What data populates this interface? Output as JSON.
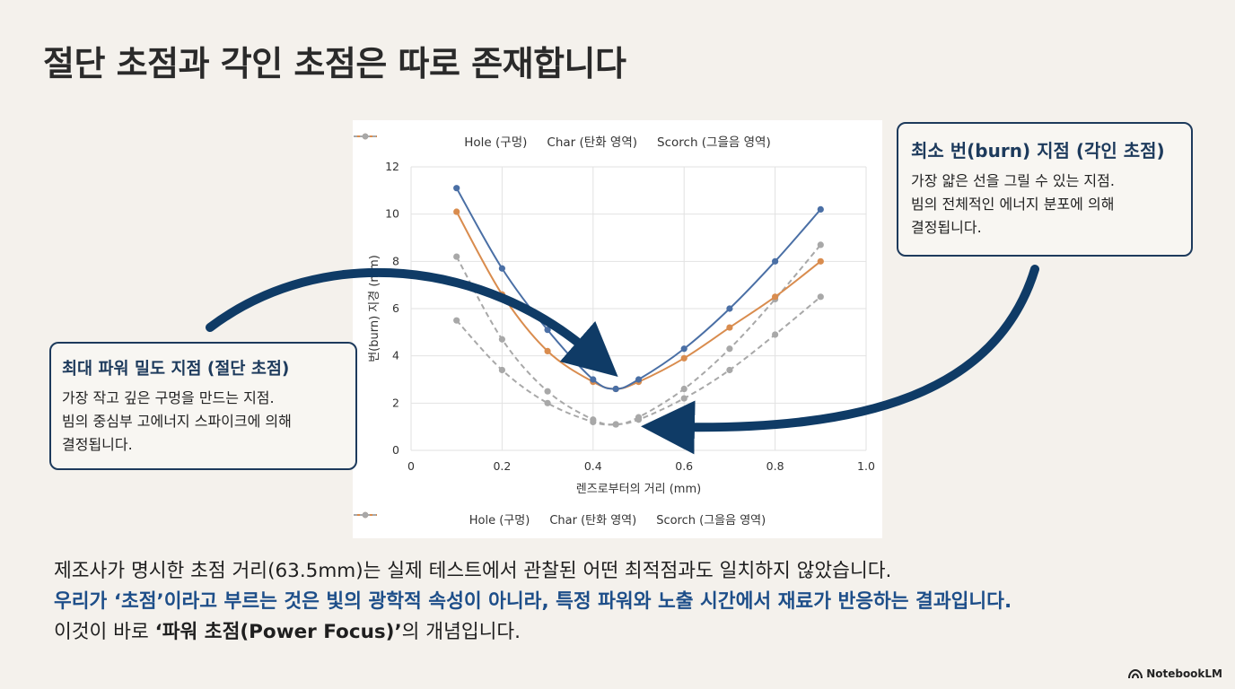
{
  "slide": {
    "title": "절단 초점과 각인 초점은 따로 존재합니다",
    "brand": "NotebookLM",
    "brand_icon": "notebooklm-logo-icon"
  },
  "callouts": {
    "left": {
      "title": "최대 파워 밀도 지점 (절단 초점)",
      "lines": [
        "가장 작고 깊은 구멍을 만드는 지점.",
        "빔의 중심부 고에너지 스파이크에 의해",
        "결정됩니다."
      ]
    },
    "right": {
      "title": "최소 번(burn) 지점 (각인 초점)",
      "lines": [
        "가장 얇은 선을 그릴 수 있는 지점.",
        "빔의 전체적인 에너지 분포에 의해",
        "결정됩니다."
      ]
    },
    "arrow_color": "#0f3b66"
  },
  "bottom": {
    "line1": "제조사가 명시한 초점 거리(63.5mm)는 실제 테스트에서 관찰된 어떤 최적점과도 일치하지 않았습니다.",
    "line2": "우리가 ‘초점’이라고 부르는 것은 빛의 광학적 속성이 아니라, 특정 파워와 노출 시간에서 재료가 반응하는 결과입니다.",
    "line3_prefix": "이것이 바로 ",
    "line3_bold": "‘파워 초점(Power Focus)’",
    "line3_suffix": "의 개념입니다."
  },
  "chart_data": {
    "type": "line",
    "title": "",
    "xlabel": "렌즈로부터의 거리 (mm)",
    "ylabel": "번(burn) 지경 (mm)",
    "xlim": [
      0,
      1.0
    ],
    "ylim": [
      0,
      12
    ],
    "xticks": [
      "0",
      "0.2",
      "0.4",
      "0.6",
      "0.8",
      "1.0"
    ],
    "yticks": [
      "0",
      "2",
      "4",
      "6",
      "8",
      "10",
      "12"
    ],
    "grid": true,
    "legend_position": "top and bottom",
    "x": [
      0.1,
      0.2,
      0.3,
      0.4,
      0.45,
      0.5,
      0.6,
      0.7,
      0.8,
      0.9
    ],
    "series": [
      {
        "name": "Hole (구멍)",
        "color": "#4a6fa5",
        "dashed": false,
        "values": [
          11.1,
          7.7,
          5.1,
          3.0,
          2.6,
          3.0,
          4.3,
          6.0,
          8.0,
          10.2
        ]
      },
      {
        "name": "Char (탄화 영역)",
        "color": "#d98c4e",
        "dashed": false,
        "values": [
          10.1,
          6.6,
          4.2,
          2.9,
          2.6,
          2.9,
          3.9,
          5.2,
          6.5,
          8.0
        ]
      },
      {
        "name": "Scorch (그을음 영역)",
        "color": "#a8a8a8",
        "dashed": true,
        "values": [
          8.2,
          4.7,
          2.5,
          1.3,
          1.1,
          1.4,
          2.6,
          4.3,
          6.4,
          8.7
        ]
      },
      {
        "name": "Scorch (그을음 영역)",
        "color": "#a8a8a8",
        "dashed": true,
        "values": [
          5.5,
          3.4,
          2.0,
          1.2,
          1.1,
          1.3,
          2.2,
          3.4,
          4.9,
          6.5
        ]
      }
    ]
  }
}
